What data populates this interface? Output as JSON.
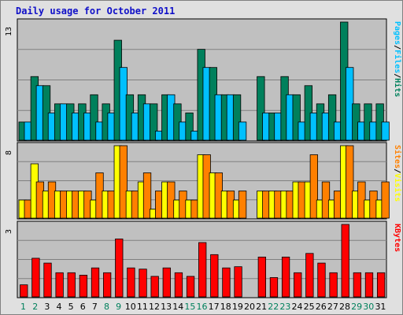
{
  "title": "Daily usage for October 2011",
  "colors": {
    "pages": "#00805c",
    "files": "#00c0ff",
    "hits": "#00805c",
    "sites": "#ff8000",
    "visits": "#ffff00",
    "kbytes": "#ff0000",
    "weekend": "#00805c",
    "weekday": "#000000",
    "separator": "#000000"
  },
  "chart_data": [
    {
      "type": "bar",
      "panel": "hits-files-pages",
      "axis_label_parts": [
        "Pages",
        "/",
        "Files",
        "/",
        "Hits"
      ],
      "ymax_label": "13",
      "ylim": [
        0,
        13
      ],
      "categories": [
        "1",
        "2",
        "3",
        "4",
        "5",
        "6",
        "7",
        "8",
        "9",
        "10",
        "11",
        "12",
        "13",
        "14",
        "15",
        "16",
        "17",
        "18",
        "19",
        "20",
        "21",
        "22",
        "23",
        "24",
        "25",
        "26",
        "27",
        "28",
        "29",
        "30",
        "31"
      ],
      "series": [
        {
          "name": "Hits",
          "values": [
            2,
            7,
            6,
            4,
            4,
            4,
            5,
            4,
            11,
            5,
            5,
            4,
            5,
            4,
            3,
            10,
            8,
            5,
            5,
            0,
            7,
            3,
            7,
            5,
            6,
            4,
            5,
            13,
            4,
            4,
            4
          ]
        },
        {
          "name": "Files",
          "values": [
            2,
            6,
            3,
            4,
            3,
            3,
            2,
            3,
            8,
            3,
            4,
            1,
            5,
            2,
            1,
            8,
            5,
            5,
            2,
            0,
            3,
            3,
            5,
            2,
            3,
            3,
            2,
            8,
            2,
            2,
            2
          ]
        }
      ]
    },
    {
      "type": "bar",
      "panel": "visits-sites",
      "axis_label_parts": [
        "Sites",
        "/",
        "Visits"
      ],
      "ymax_label": "8",
      "ylim": [
        0,
        8
      ],
      "categories": [
        "1",
        "2",
        "3",
        "4",
        "5",
        "6",
        "7",
        "8",
        "9",
        "10",
        "11",
        "12",
        "13",
        "14",
        "15",
        "16",
        "17",
        "18",
        "19",
        "20",
        "21",
        "22",
        "23",
        "24",
        "25",
        "26",
        "27",
        "28",
        "29",
        "30",
        "31"
      ],
      "series": [
        {
          "name": "Visits",
          "values": [
            2,
            6,
            3,
            3,
            3,
            3,
            2,
            3,
            8,
            3,
            4,
            1,
            4,
            2,
            2,
            7,
            5,
            3,
            2,
            0,
            3,
            3,
            3,
            4,
            4,
            2,
            2,
            8,
            3,
            2,
            2
          ]
        },
        {
          "name": "Sites",
          "values": [
            2,
            4,
            4,
            3,
            3,
            3,
            5,
            3,
            8,
            3,
            5,
            3,
            4,
            3,
            2,
            7,
            5,
            3,
            3,
            0,
            3,
            3,
            3,
            4,
            7,
            4,
            3,
            8,
            4,
            3,
            4
          ]
        }
      ]
    },
    {
      "type": "bar",
      "panel": "kbytes",
      "axis_label_parts": [
        "KBytes"
      ],
      "ymax_label": "3",
      "ylim": [
        0,
        3
      ],
      "categories": [
        "1",
        "2",
        "3",
        "4",
        "5",
        "6",
        "7",
        "8",
        "9",
        "10",
        "11",
        "12",
        "13",
        "14",
        "15",
        "16",
        "17",
        "18",
        "19",
        "20",
        "21",
        "22",
        "23",
        "24",
        "25",
        "26",
        "27",
        "28",
        "29",
        "30",
        "31"
      ],
      "series": [
        {
          "name": "KBytes",
          "values": [
            0.5,
            1.6,
            1.4,
            1,
            1,
            0.9,
            1.2,
            1,
            2.4,
            1.2,
            1.15,
            0.85,
            1.2,
            1,
            0.85,
            2.25,
            1.75,
            1.2,
            1.25,
            0,
            1.65,
            0.8,
            1.65,
            1,
            1.8,
            1.4,
            1,
            3,
            1,
            1,
            1
          ]
        }
      ]
    }
  ],
  "weekend_days": [
    1,
    2,
    8,
    9,
    15,
    16,
    22,
    23,
    29,
    30
  ]
}
